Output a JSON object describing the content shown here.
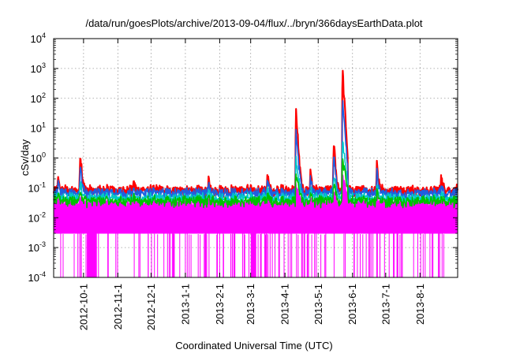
{
  "chart_data": {
    "type": "line",
    "title": "/data/run/goesPlots/archive/2013-09-04/flux/../bryn/366daysEarthData.plot",
    "xlabel": "Coordinated Universal Time (UTC)",
    "ylabel": "cSv/day",
    "yscale": "log",
    "ylim": [
      0.0001,
      10000
    ],
    "xlim": [
      "2012-09-04",
      "2013-09-04"
    ],
    "y_tick_labels": [
      {
        "base": "10",
        "exp": "-4",
        "value": 0.0001
      },
      {
        "base": "10",
        "exp": "-3",
        "value": 0.001
      },
      {
        "base": "10",
        "exp": "-2",
        "value": 0.01
      },
      {
        "base": "10",
        "exp": "-1",
        "value": 0.1
      },
      {
        "base": "10",
        "exp": "0",
        "value": 1
      },
      {
        "base": "10",
        "exp": "1",
        "value": 10
      },
      {
        "base": "10",
        "exp": "2",
        "value": 100
      },
      {
        "base": "10",
        "exp": "3",
        "value": 1000
      },
      {
        "base": "10",
        "exp": "4",
        "value": 10000
      }
    ],
    "x_ticks": [
      {
        "label": "2012-10-1",
        "date": "2012-10-01"
      },
      {
        "label": "2012-11-1",
        "date": "2012-11-01"
      },
      {
        "label": "2012-12-1",
        "date": "2012-12-01"
      },
      {
        "label": "2013-1-1",
        "date": "2013-01-01"
      },
      {
        "label": "2013-2-1",
        "date": "2013-02-01"
      },
      {
        "label": "2013-3-1",
        "date": "2013-03-01"
      },
      {
        "label": "2013-4-1",
        "date": "2013-04-01"
      },
      {
        "label": "2013-5-1",
        "date": "2013-05-01"
      },
      {
        "label": "2013-6-1",
        "date": "2013-06-01"
      },
      {
        "label": "2013-7-1",
        "date": "2013-07-01"
      },
      {
        "label": "2013-8-1",
        "date": "2013-08-01"
      }
    ],
    "grid": true,
    "legend": "none",
    "series": [
      {
        "color": "#ff0000",
        "baseline": 0.08,
        "peak_scale": 1.3
      },
      {
        "color": "#1f5fe0",
        "baseline": 0.065,
        "peak_scale": 1.0
      },
      {
        "color": "#00c8c8",
        "baseline": 0.045,
        "peak_scale": 0.6
      },
      {
        "color": "#00c000",
        "baseline": 0.035,
        "peak_scale": 0.45
      },
      {
        "color": "#ff00ff",
        "baseline": 0.03,
        "peak_scale": 0.3
      }
    ],
    "peaks": [
      {
        "date": "2012-09-28",
        "value": 0.95
      },
      {
        "date": "2012-09-08",
        "value": 0.2
      },
      {
        "date": "2012-11-15",
        "value": 0.15
      },
      {
        "date": "2013-01-22",
        "value": 0.15
      },
      {
        "date": "2013-03-16",
        "value": 0.25
      },
      {
        "date": "2013-04-11",
        "value": 9.5
      },
      {
        "date": "2013-04-24",
        "value": 0.3
      },
      {
        "date": "2013-05-15",
        "value": 1.6
      },
      {
        "date": "2013-05-23",
        "value": 100
      },
      {
        "date": "2013-06-23",
        "value": 0.5
      },
      {
        "date": "2013-08-20",
        "value": 0.2
      }
    ],
    "magenta_min": 0.003,
    "dropout_floor": 0.0001,
    "dropout_bands": [
      {
        "start": "2012-10-04",
        "end": "2012-10-13"
      },
      {
        "start": "2013-03-01",
        "end": "2013-03-06"
      }
    ]
  }
}
